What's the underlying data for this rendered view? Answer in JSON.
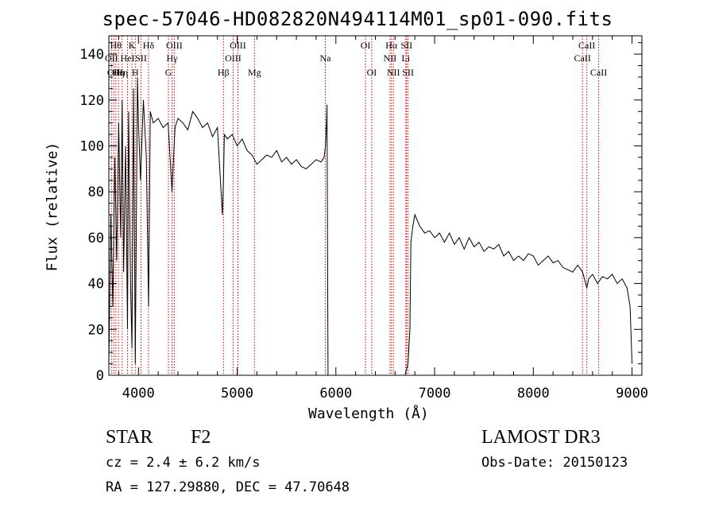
{
  "chart_data": {
    "type": "line",
    "title": "spec-57046-HD082820N494114M01_sp01-090.fits",
    "xlabel": "Wavelength (Å)",
    "ylabel": "Flux (relative)",
    "xlim": [
      3700,
      9100
    ],
    "ylim": [
      0,
      148
    ],
    "xticks": [
      4000,
      5000,
      6000,
      7000,
      8000,
      9000
    ],
    "yticks": [
      0,
      20,
      40,
      60,
      80,
      100,
      120,
      140
    ],
    "grid": false,
    "line_color": "#000000",
    "marker_color": "#cc0000",
    "series": [
      {
        "x": [
          3700,
          3720,
          3740,
          3760,
          3780,
          3800,
          3820,
          3835,
          3850,
          3870,
          3889,
          3900,
          3920,
          3934,
          3950,
          3968,
          3990,
          4000,
          4020,
          4050,
          4080,
          4102,
          4120,
          4150,
          4200,
          4250,
          4300,
          4340,
          4370,
          4400,
          4450,
          4500,
          4550,
          4600,
          4650,
          4700,
          4750,
          4800,
          4850,
          4861,
          4870,
          4900,
          4950,
          5000,
          5050,
          5100,
          5150,
          5200,
          5250,
          5300,
          5350,
          5400,
          5450,
          5500,
          5550,
          5600,
          5650,
          5700,
          5750,
          5800,
          5850,
          5880,
          5895,
          5905,
          5910,
          5915,
          5920,
          6700,
          6730,
          6750,
          6760,
          6780,
          6800,
          6850,
          6900,
          6950,
          7000,
          7050,
          7100,
          7150,
          7200,
          7250,
          7300,
          7350,
          7400,
          7450,
          7500,
          7550,
          7600,
          7650,
          7700,
          7750,
          7800,
          7850,
          7900,
          7950,
          8000,
          8050,
          8100,
          8150,
          8200,
          8250,
          8300,
          8350,
          8400,
          8450,
          8500,
          8542,
          8560,
          8600,
          8650,
          8700,
          8750,
          8800,
          8850,
          8900,
          8950,
          8980,
          9000
        ],
        "y": [
          5,
          70,
          30,
          95,
          50,
          110,
          60,
          120,
          45,
          100,
          20,
          115,
          40,
          12,
          125,
          5,
          130,
          110,
          85,
          120,
          95,
          30,
          115,
          110,
          112,
          108,
          110,
          80,
          108,
          112,
          110,
          107,
          115,
          112,
          108,
          110,
          104,
          108,
          70,
          85,
          105,
          103,
          105,
          100,
          103,
          98,
          96,
          92,
          94,
          96,
          95,
          98,
          93,
          95,
          92,
          94,
          91,
          90,
          92,
          94,
          93,
          95,
          100,
          110,
          118,
          65,
          0,
          0,
          5,
          20,
          58,
          65,
          70,
          65,
          62,
          63,
          60,
          62,
          58,
          62,
          57,
          60,
          55,
          60,
          56,
          58,
          54,
          56,
          55,
          57,
          52,
          54,
          50,
          52,
          50,
          53,
          52,
          48,
          50,
          52,
          49,
          50,
          47,
          46,
          45,
          48,
          45,
          38,
          42,
          44,
          40,
          43,
          42,
          44,
          40,
          42,
          38,
          30,
          5
        ]
      }
    ],
    "line_markers": [
      {
        "x": 3727,
        "label": "OII",
        "row": 2
      },
      {
        "x": 3750,
        "label": "OII",
        "row": 3
      },
      {
        "x": 3771,
        "label": "Hθ",
        "row": 1
      },
      {
        "x": 3798,
        "label": "Hη",
        "row": 3
      },
      {
        "x": 3835,
        "label": "Hη",
        "row": 3
      },
      {
        "x": 3889,
        "label": "HeI",
        "row": 2
      },
      {
        "x": 3934,
        "label": "K",
        "row": 1
      },
      {
        "x": 3968,
        "label": "H",
        "row": 3
      },
      {
        "x": 4026,
        "label": "SII",
        "row": 2
      },
      {
        "x": 4102,
        "label": "Hδ",
        "row": 1
      },
      {
        "x": 4304,
        "label": "G",
        "row": 3
      },
      {
        "x": 4340,
        "label": "Hγ",
        "row": 2
      },
      {
        "x": 4363,
        "label": "OIII",
        "row": 1
      },
      {
        "x": 4861,
        "label": "Hβ",
        "row": 3
      },
      {
        "x": 4959,
        "label": "OIII",
        "row": 2
      },
      {
        "x": 5007,
        "label": "OIII",
        "row": 1
      },
      {
        "x": 5175,
        "label": "Mg",
        "row": 3
      },
      {
        "x": 5893,
        "label": "Na",
        "row": 2
      },
      {
        "x": 6300,
        "label": "OI",
        "row": 1
      },
      {
        "x": 6363,
        "label": "OI",
        "row": 3
      },
      {
        "x": 6548,
        "label": "NII",
        "row": 2
      },
      {
        "x": 6563,
        "label": "Hα",
        "row": 1
      },
      {
        "x": 6583,
        "label": "NII",
        "row": 3
      },
      {
        "x": 6708,
        "label": "Li",
        "row": 2
      },
      {
        "x": 6716,
        "label": "SII",
        "row": 1
      },
      {
        "x": 6731,
        "label": "SII",
        "row": 3
      },
      {
        "x": 8498,
        "label": "CaII",
        "row": 2
      },
      {
        "x": 8542,
        "label": "CaII",
        "row": 1
      },
      {
        "x": 8662,
        "label": "CaII",
        "row": 3
      }
    ]
  },
  "info": {
    "object_class": "STAR",
    "subclass": "F2",
    "survey": "LAMOST DR3",
    "cz": "cz = 2.4 ± 6.2 km/s",
    "obs_date": "Obs-Date: 20150123",
    "coords": "RA = 127.29880, DEC =  47.70648"
  }
}
